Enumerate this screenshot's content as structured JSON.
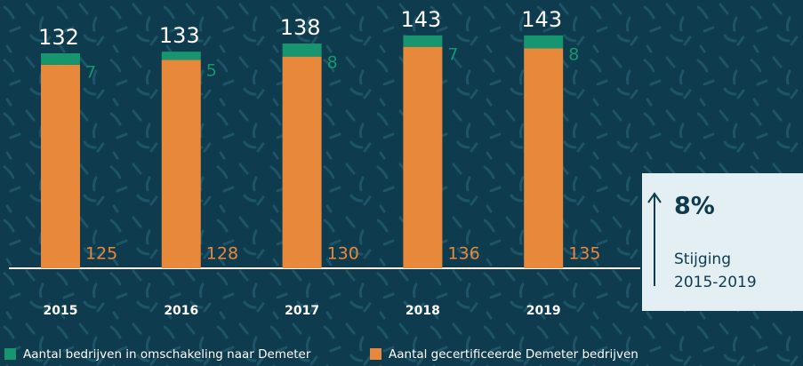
{
  "chart_data": {
    "type": "stacked_bar",
    "categories": [
      "2015",
      "2016",
      "2017",
      "2018",
      "2019"
    ],
    "series": [
      {
        "name": "Aantal gecertificeerde Demeter bedrijven",
        "color": "#e8883a",
        "values": [
          125,
          128,
          130,
          136,
          135
        ]
      },
      {
        "name": "Aantal bedrijven in omschakeling naar Demeter",
        "color": "#16956f",
        "values": [
          7,
          5,
          8,
          7,
          8
        ]
      }
    ],
    "totals": [
      132,
      133,
      138,
      143,
      143
    ],
    "ylim": [
      0,
      150
    ],
    "annotation": {
      "label": "8%",
      "lines": [
        "Stijging",
        "2015-2019"
      ]
    }
  }
}
